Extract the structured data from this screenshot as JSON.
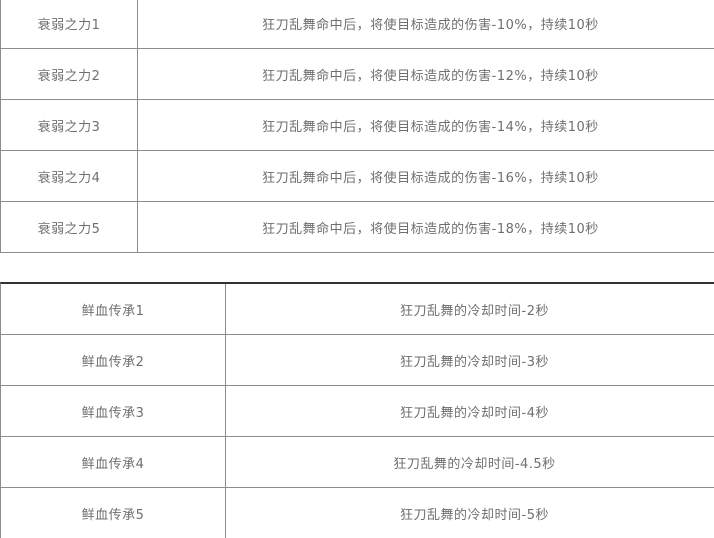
{
  "colors": {
    "background": "#ffffff",
    "border": "#8d8d8d",
    "border_dark": "#333333",
    "text": "#6f6f6f"
  },
  "tables": [
    {
      "name": "weaken-power",
      "rows": [
        {
          "skill": "衰弱之力1",
          "effect": "狂刀乱舞命中后，将使目标造成的伤害-10%，持续10秒"
        },
        {
          "skill": "衰弱之力2",
          "effect": "狂刀乱舞命中后，将使目标造成的伤害-12%，持续10秒"
        },
        {
          "skill": "衰弱之力3",
          "effect": "狂刀乱舞命中后，将使目标造成的伤害-14%，持续10秒"
        },
        {
          "skill": "衰弱之力4",
          "effect": "狂刀乱舞命中后，将使目标造成的伤害-16%，持续10秒"
        },
        {
          "skill": "衰弱之力5",
          "effect": "狂刀乱舞命中后，将使目标造成的伤害-18%，持续10秒"
        }
      ]
    },
    {
      "name": "blood-heritage",
      "rows": [
        {
          "skill": "鲜血传承1",
          "effect": "狂刀乱舞的冷却时间-2秒"
        },
        {
          "skill": "鲜血传承2",
          "effect": "狂刀乱舞的冷却时间-3秒"
        },
        {
          "skill": "鲜血传承3",
          "effect": "狂刀乱舞的冷却时间-4秒"
        },
        {
          "skill": "鲜血传承4",
          "effect": "狂刀乱舞的冷却时间-4.5秒"
        },
        {
          "skill": "鲜血传承5",
          "effect": "狂刀乱舞的冷却时间-5秒"
        }
      ]
    }
  ]
}
